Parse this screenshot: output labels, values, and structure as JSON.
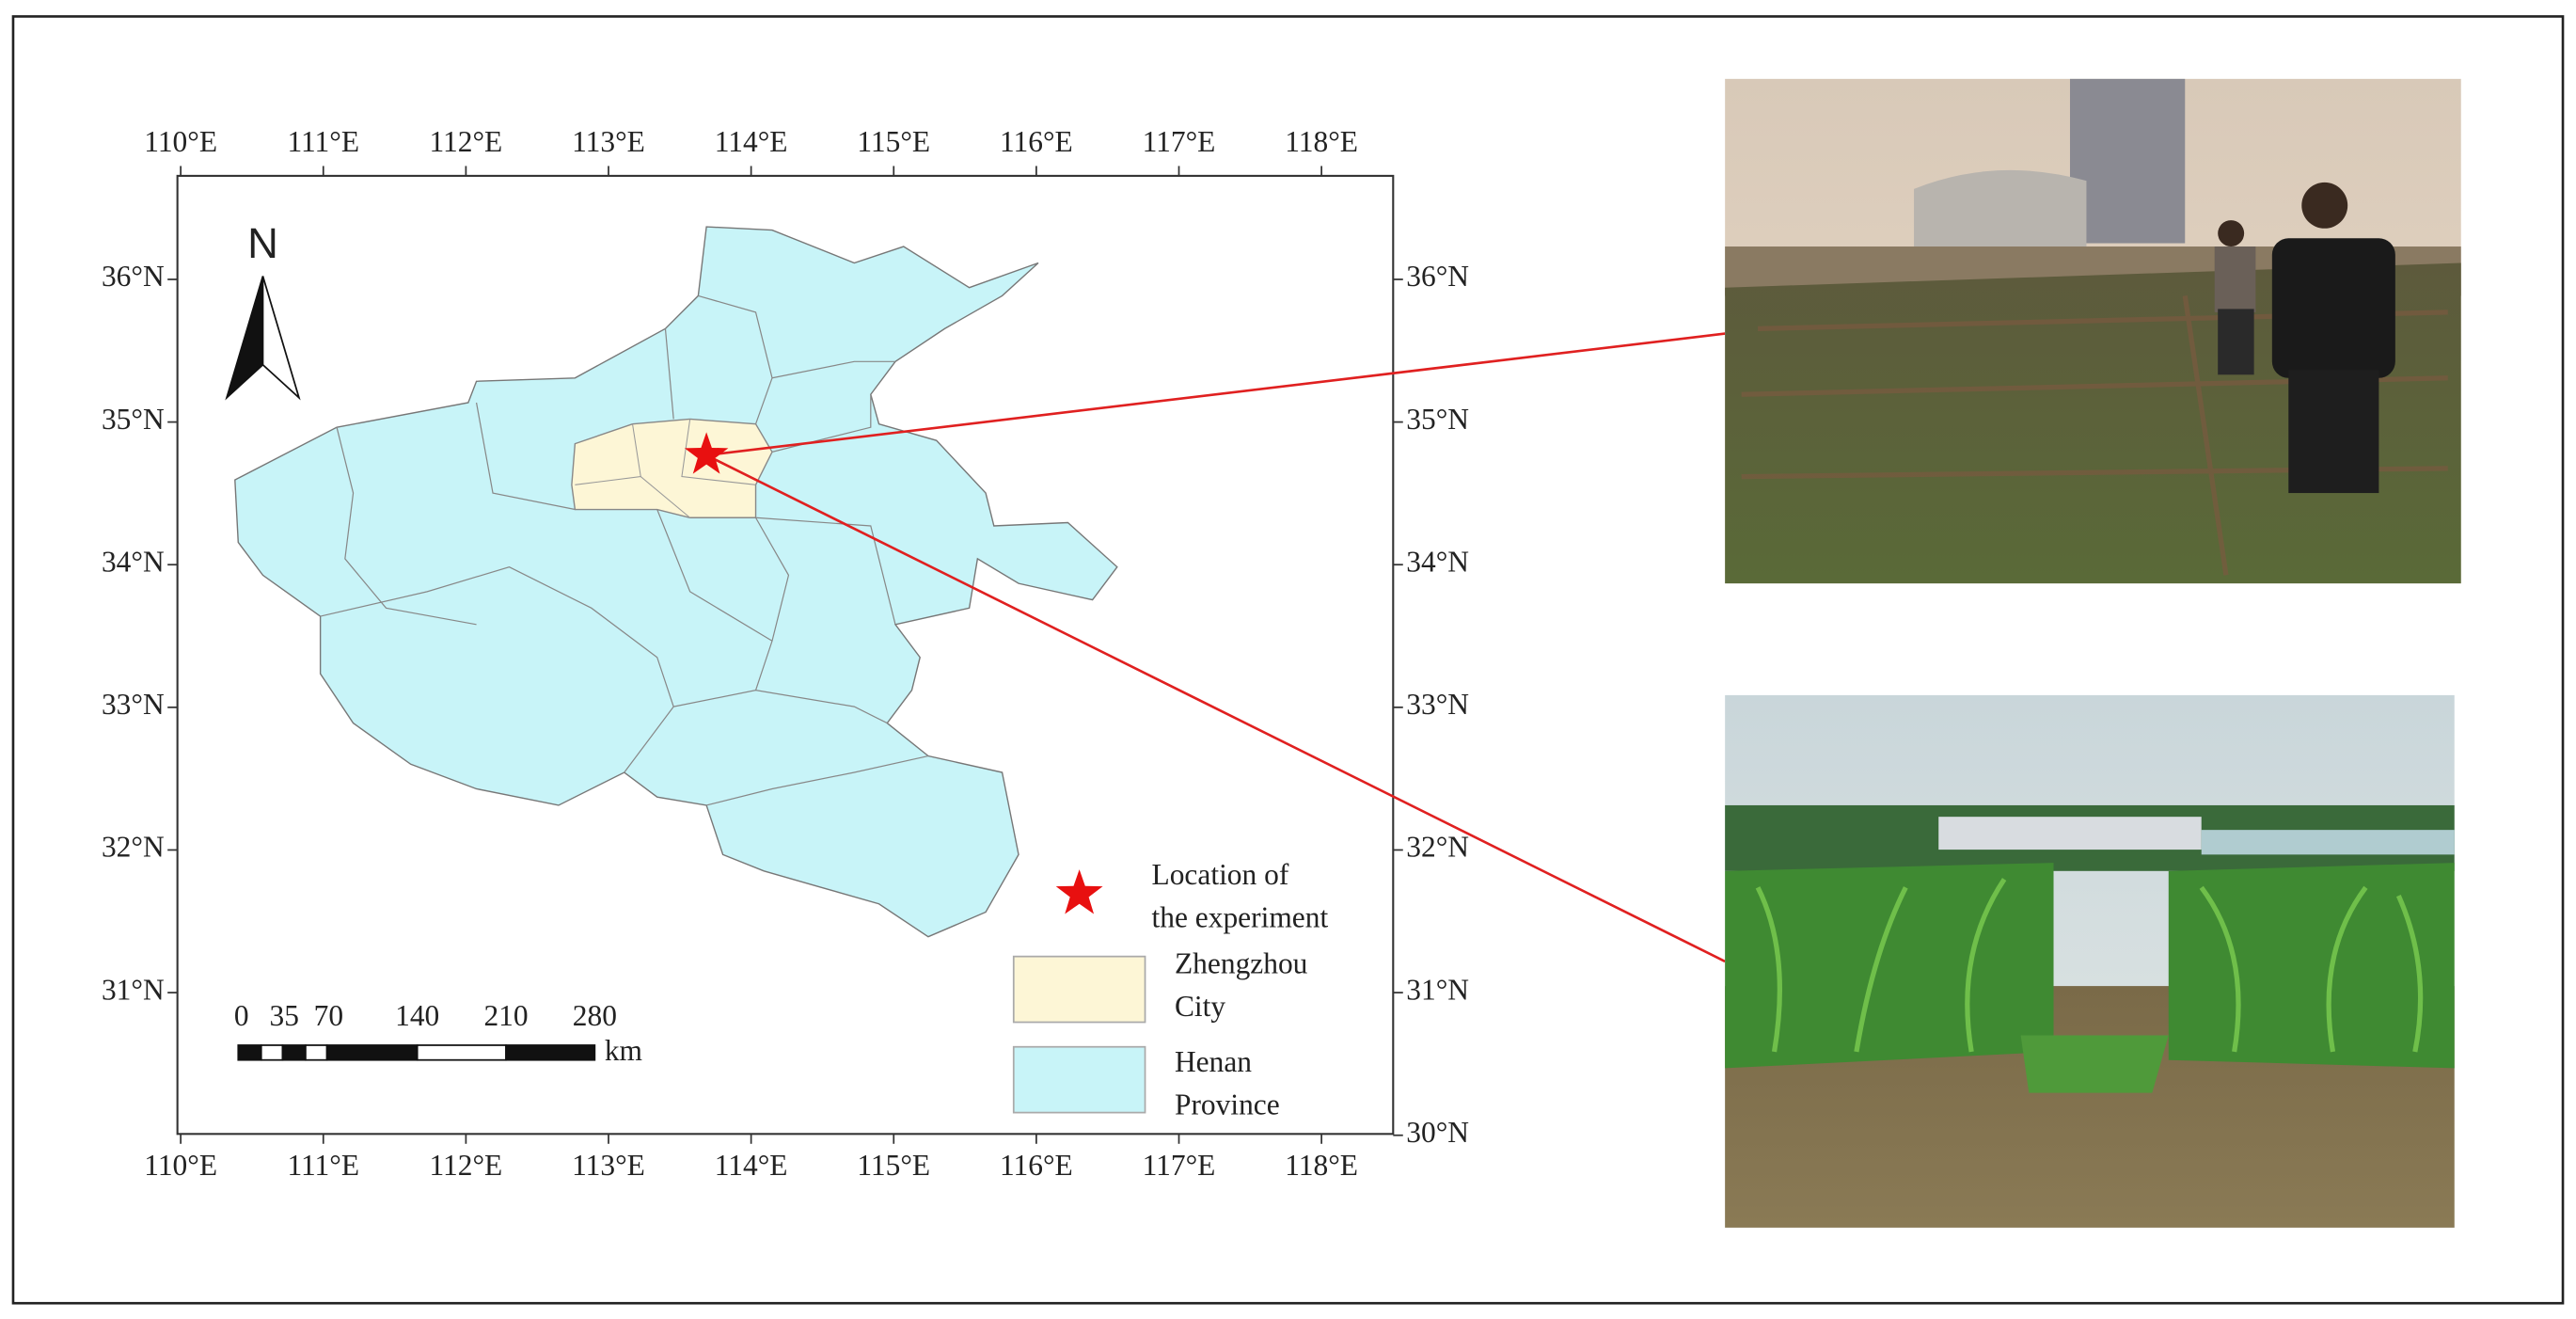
{
  "map": {
    "top_axis_labels": [
      "110°E",
      "111°E",
      "112°E",
      "113°E",
      "114°E",
      "115°E",
      "116°E",
      "117°E",
      "118°E"
    ],
    "bottom_axis_labels": [
      "110°E",
      "111°E",
      "112°E",
      "113°E",
      "114°E",
      "115°E",
      "116°E",
      "117°E",
      "118°E"
    ],
    "left_axis_labels": [
      "36°N",
      "35°N",
      "34°N",
      "33°N",
      "32°N",
      "31°N"
    ],
    "right_axis_labels": [
      "36°N",
      "35°N",
      "34°N",
      "33°N",
      "32°N",
      "31°N",
      "30°N"
    ],
    "north": "N",
    "scale_labels": [
      "0",
      "35",
      "70",
      "140",
      "210",
      "280"
    ],
    "scale_unit": "km",
    "legend": [
      {
        "lines": [
          "Location of",
          "the experiment"
        ]
      },
      {
        "lines": [
          "Zhengzhou",
          "City"
        ]
      },
      {
        "lines": [
          "Henan",
          "Province"
        ]
      }
    ]
  }
}
